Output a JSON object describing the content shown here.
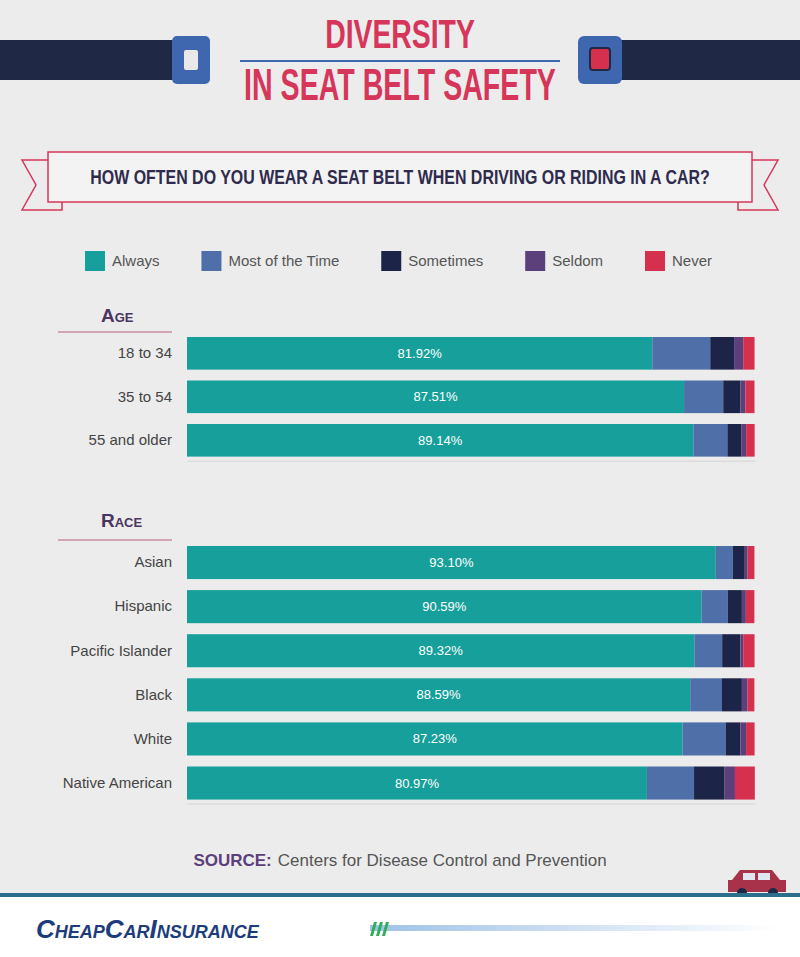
{
  "title": "DIVERSITY IN SEAT BELT SAFETY",
  "subtitle": "HOW OFTEN DO YOU WEAR A SEAT BELT WHEN DRIVING OR RIDING IN A CAR?",
  "source_label": "SOURCE:",
  "source": "Centers for Disease Control and Prevention",
  "brand": "CheapCarInsurance",
  "chart_data": [
    {
      "type": "bar",
      "title": "Age",
      "orientation": "horizontal",
      "stacked": true,
      "tick_labels": false,
      "legend": "top",
      "xlim": [
        0,
        100
      ],
      "categories": [
        "18 to 34",
        "35 to 54",
        "55 and older"
      ],
      "series": [
        {
          "name": "Always",
          "color": "#17a09b",
          "data_labels": true,
          "values": [
            81.92,
            87.51,
            89.14
          ],
          "value_labels": [
            "81.92%",
            "87.51%",
            "89.14%"
          ]
        },
        {
          "name": "Most of the Time",
          "color": "#4e6fa8",
          "values": [
            10.2,
            6.9,
            6.0
          ]
        },
        {
          "name": "Sometimes",
          "color": "#1c2447",
          "values": [
            4.2,
            3.0,
            2.5
          ]
        },
        {
          "name": "Seldom",
          "color": "#5b407c",
          "values": [
            1.6,
            0.9,
            0.8
          ]
        },
        {
          "name": "Never",
          "color": "#d6304f",
          "values": [
            2.0,
            1.6,
            1.5
          ]
        }
      ]
    },
    {
      "type": "bar",
      "title": "Race",
      "orientation": "horizontal",
      "stacked": true,
      "tick_labels": false,
      "xlim": [
        0,
        100
      ],
      "categories": [
        "Asian",
        "Hispanic",
        "Pacific Islander",
        "Black",
        "White",
        "Native American"
      ],
      "series": [
        {
          "name": "Always",
          "color": "#17a09b",
          "data_labels": true,
          "values": [
            93.1,
            90.59,
            89.32,
            88.59,
            87.23,
            80.97
          ],
          "value_labels": [
            "93.10%",
            "90.59%",
            "89.32%",
            "88.59%",
            "87.23%",
            "80.97%"
          ]
        },
        {
          "name": "Most of the Time",
          "color": "#4e6fa8",
          "values": [
            3.0,
            4.6,
            4.9,
            5.6,
            7.6,
            8.3
          ]
        },
        {
          "name": "Sometimes",
          "color": "#1c2447",
          "values": [
            2.1,
            2.5,
            3.2,
            3.5,
            2.6,
            5.3
          ]
        },
        {
          "name": "Seldom",
          "color": "#5b407c",
          "values": [
            0.5,
            0.7,
            0.5,
            1.0,
            1.0,
            1.9
          ]
        },
        {
          "name": "Never",
          "color": "#d6304f",
          "values": [
            1.2,
            1.5,
            2.0,
            1.2,
            1.5,
            3.5
          ]
        }
      ]
    }
  ]
}
